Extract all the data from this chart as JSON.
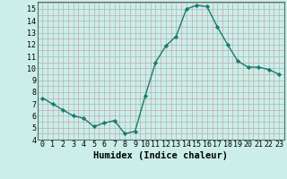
{
  "x": [
    0,
    1,
    2,
    3,
    4,
    5,
    6,
    7,
    8,
    9,
    10,
    11,
    12,
    13,
    14,
    15,
    16,
    17,
    18,
    19,
    20,
    21,
    22,
    23
  ],
  "y": [
    7.5,
    7.0,
    6.5,
    6.0,
    5.8,
    5.1,
    5.4,
    5.6,
    4.5,
    4.7,
    7.7,
    10.5,
    11.9,
    12.7,
    15.0,
    15.3,
    15.2,
    13.5,
    12.0,
    10.6,
    10.1,
    10.1,
    9.9,
    9.5
  ],
  "line_color": "#1a7a6e",
  "marker": "D",
  "marker_size": 2.2,
  "bg_color": "#cceee8",
  "grid_minor_color": "#c8a8a8",
  "grid_major_color": "#a8b8b8",
  "xlabel": "Humidex (Indice chaleur)",
  "xlim": [
    -0.5,
    23.5
  ],
  "ylim": [
    4,
    15.6
  ],
  "yticks": [
    4,
    5,
    6,
    7,
    8,
    9,
    10,
    11,
    12,
    13,
    14,
    15
  ],
  "xticks": [
    0,
    1,
    2,
    3,
    4,
    5,
    6,
    7,
    8,
    9,
    10,
    11,
    12,
    13,
    14,
    15,
    16,
    17,
    18,
    19,
    20,
    21,
    22,
    23
  ],
  "xlabel_fontsize": 7.5,
  "tick_fontsize": 6.0
}
